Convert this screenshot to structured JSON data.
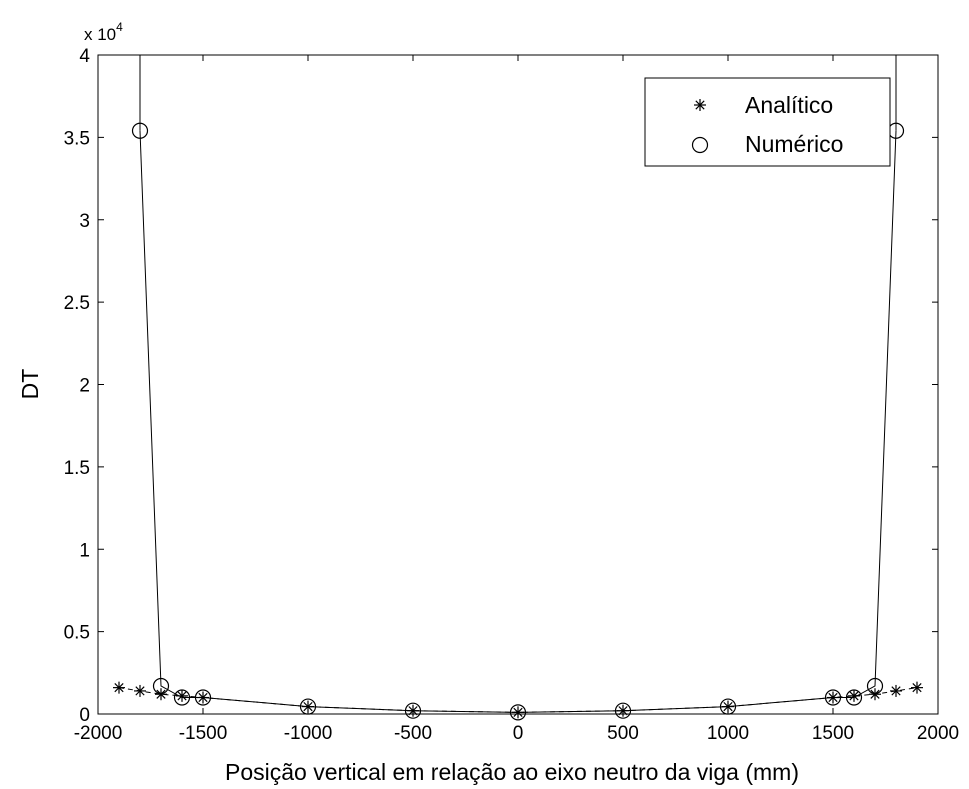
{
  "chart_data": {
    "type": "line",
    "xlabel": "Posição vertical em relação ao eixo neutro da viga (mm)",
    "ylabel": "DT",
    "exponent_label": "x 10",
    "exponent_power": "4",
    "xlim": [
      -2000,
      2000
    ],
    "ylim": [
      0,
      40000
    ],
    "x_ticks": [
      -2000,
      -1500,
      -1000,
      -500,
      0,
      500,
      1000,
      1500,
      2000
    ],
    "x_tick_labels": [
      "-2000",
      "-1500",
      "-1000",
      "-500",
      "0",
      "500",
      "1000",
      "1500",
      "2000"
    ],
    "y_ticks": [
      0,
      5000,
      10000,
      15000,
      20000,
      25000,
      30000,
      35000,
      40000
    ],
    "y_tick_labels": [
      "0",
      "0.5",
      "1",
      "1.5",
      "2",
      "2.5",
      "3",
      "3.5",
      "4"
    ],
    "grid": false,
    "legend_position": "top-right",
    "series": [
      {
        "name": "Analítico",
        "marker": "star",
        "line": "dashed",
        "x": [
          -1900,
          -1800,
          -1700,
          -1600,
          -1500,
          -1000,
          -500,
          0,
          500,
          1000,
          1500,
          1600,
          1700,
          1800,
          1900
        ],
        "y": [
          1600,
          1400,
          1200,
          1100,
          1000,
          450,
          200,
          100,
          200,
          450,
          1000,
          1100,
          1200,
          1400,
          1600
        ]
      },
      {
        "name": "Numérico",
        "marker": "circle",
        "line": "solid",
        "x": [
          -1800,
          -1700,
          -1600,
          -1500,
          -1000,
          -500,
          0,
          500,
          1000,
          1500,
          1600,
          1700,
          1800
        ],
        "y": [
          35400,
          1700,
          1000,
          1000,
          450,
          200,
          100,
          200,
          450,
          1000,
          1000,
          1700,
          35400
        ]
      }
    ],
    "clipped_lines": [
      {
        "series": "Numérico",
        "x": [
          -1800,
          -1800
        ],
        "y": [
          35400,
          40000
        ]
      },
      {
        "series": "Numérico",
        "x": [
          1800,
          1800
        ],
        "y": [
          35400,
          40000
        ]
      }
    ]
  }
}
